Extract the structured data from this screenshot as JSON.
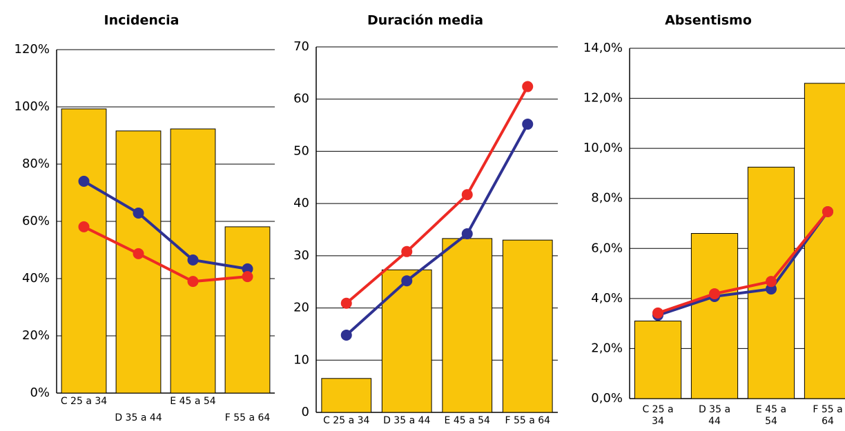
{
  "chart_data": [
    {
      "type": "combo",
      "title": "Incidencia",
      "categories": [
        "C 25 a 34",
        "D 35 a 44",
        "E 45 a 54",
        "F 55 a 64"
      ],
      "xlabel_layout": "stagger",
      "ylim": [
        0,
        120
      ],
      "yticks": [
        {
          "value": 0,
          "label": "0%"
        },
        {
          "value": 20,
          "label": "20%"
        },
        {
          "value": 40,
          "label": "40%"
        },
        {
          "value": 60,
          "label": "60%"
        },
        {
          "value": 80,
          "label": "80%"
        },
        {
          "value": 100,
          "label": "100%"
        },
        {
          "value": 120,
          "label": "120%"
        }
      ],
      "grid": true,
      "series": [
        {
          "kind": "bar",
          "color": "#f9c50b",
          "values": [
            99.3,
            91.6,
            92.3,
            58.1
          ]
        },
        {
          "kind": "line",
          "color": "#2e3192",
          "values": [
            74,
            62.9,
            46.5,
            43.4
          ]
        },
        {
          "kind": "line",
          "color": "#ed2a24",
          "values": [
            58.1,
            48.7,
            39,
            40.7
          ]
        }
      ]
    },
    {
      "type": "combo",
      "title": "Duración media",
      "categories": [
        "C 25 a 34",
        "D 35 a 44",
        "E 45 a 54",
        "F 55 a 64"
      ],
      "xlabel_layout": "single",
      "ylim": [
        0,
        70
      ],
      "yticks": [
        0,
        10,
        20,
        30,
        40,
        50,
        60,
        70
      ],
      "grid": true,
      "series": [
        {
          "kind": "bar",
          "color": "#f9c50b",
          "values": [
            6.5,
            27.3,
            33.3,
            33
          ]
        },
        {
          "kind": "line",
          "color": "#2e3192",
          "values": [
            14.8,
            25.2,
            34.2,
            55.2
          ]
        },
        {
          "kind": "line",
          "color": "#ed2a24",
          "values": [
            20.9,
            30.8,
            41.7,
            62.4
          ]
        }
      ]
    },
    {
      "type": "combo",
      "title": "Absentismo",
      "categories": [
        "C 25 a 34",
        "D 35 a 44",
        "E 45 a 54",
        "F 55 a 64"
      ],
      "xlabel_layout": "wrap",
      "ylim": [
        0,
        14
      ],
      "yticks": [
        {
          "value": 0,
          "label": "0,0%"
        },
        {
          "value": 2,
          "label": "2,0%"
        },
        {
          "value": 4,
          "label": "4,0%"
        },
        {
          "value": 6,
          "label": "6,0%"
        },
        {
          "value": 8,
          "label": "8,0%"
        },
        {
          "value": 10,
          "label": "10,0%"
        },
        {
          "value": 12,
          "label": "12,0%"
        },
        {
          "value": 14,
          "label": "14,0%"
        }
      ],
      "grid": true,
      "series": [
        {
          "kind": "bar",
          "color": "#f9c50b",
          "values": [
            3.1,
            6.6,
            9.25,
            12.6
          ]
        },
        {
          "kind": "line",
          "color": "#2e3192",
          "values": [
            3.33,
            4.08,
            4.38,
            7.47
          ]
        },
        {
          "kind": "line",
          "color": "#ed2a24",
          "values": [
            3.42,
            4.19,
            4.68,
            7.47
          ]
        }
      ]
    }
  ]
}
